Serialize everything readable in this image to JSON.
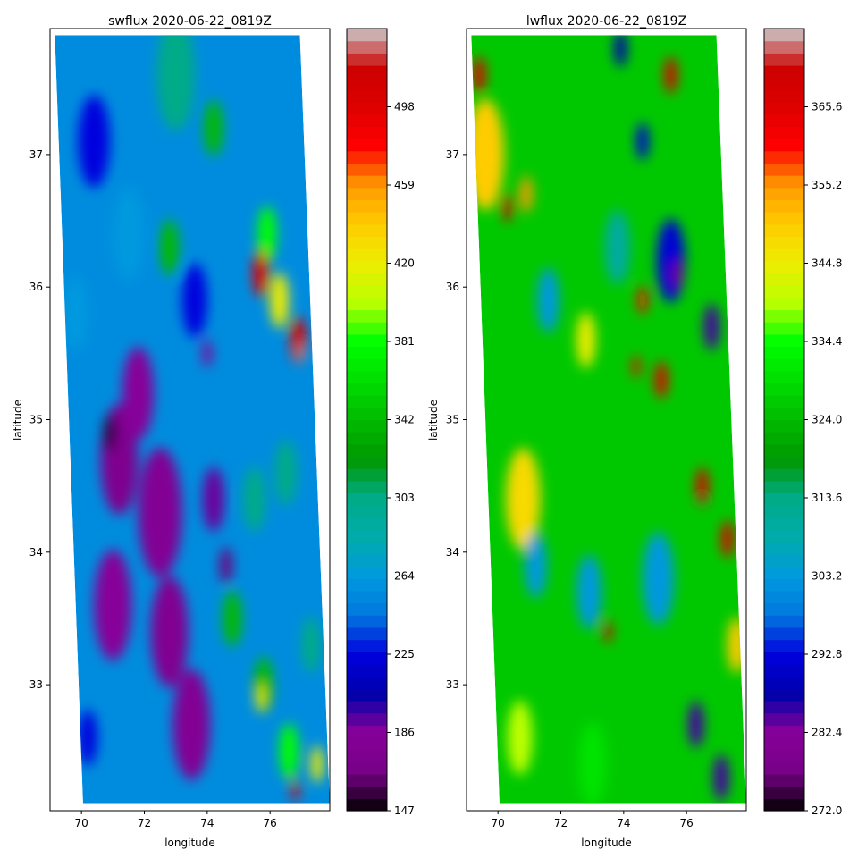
{
  "chart_data": [
    {
      "type": "heatmap",
      "title": "swflux 2020-06-22_0819Z",
      "xlabel": "longitude",
      "ylabel": "latitude",
      "x_ticks": [
        70,
        72,
        74,
        76
      ],
      "y_ticks": [
        33,
        34,
        35,
        36,
        37
      ],
      "xlim": [
        69.0,
        77.9
      ],
      "ylim": [
        32.05,
        37.95
      ],
      "colorbar": {
        "colormap": "nipy_spectral",
        "min": 147,
        "max": 537,
        "ticks": [
          147,
          186,
          225,
          264,
          303,
          342,
          381,
          420,
          459,
          498
        ]
      },
      "swath_corners": [
        [
          69.15,
          37.9
        ],
        [
          76.95,
          37.9
        ],
        [
          77.9,
          32.1
        ],
        [
          70.05,
          32.1
        ]
      ],
      "features": [
        {
          "lon": 70.4,
          "lat": 37.1,
          "value": 225,
          "radius_deg": 0.5
        },
        {
          "lon": 71.5,
          "lat": 36.4,
          "value": 264,
          "radius_deg": 0.5
        },
        {
          "lon": 73.0,
          "lat": 37.6,
          "value": 303,
          "radius_deg": 0.6
        },
        {
          "lon": 74.2,
          "lat": 37.2,
          "value": 342,
          "radius_deg": 0.3
        },
        {
          "lon": 72.8,
          "lat": 36.3,
          "value": 342,
          "radius_deg": 0.3
        },
        {
          "lon": 75.9,
          "lat": 36.4,
          "value": 381,
          "radius_deg": 0.3
        },
        {
          "lon": 75.7,
          "lat": 36.1,
          "value": 498,
          "radius_deg": 0.25
        },
        {
          "lon": 76.3,
          "lat": 35.9,
          "value": 420,
          "radius_deg": 0.3
        },
        {
          "lon": 76.9,
          "lat": 35.6,
          "value": 498,
          "radius_deg": 0.25
        },
        {
          "lon": 77.0,
          "lat": 35.5,
          "value": 530,
          "radius_deg": 0.1
        },
        {
          "lon": 73.6,
          "lat": 35.9,
          "value": 225,
          "radius_deg": 0.4
        },
        {
          "lon": 74.0,
          "lat": 35.5,
          "value": 186,
          "radius_deg": 0.15
        },
        {
          "lon": 71.8,
          "lat": 35.2,
          "value": 186,
          "radius_deg": 0.5
        },
        {
          "lon": 71.2,
          "lat": 34.7,
          "value": 175,
          "radius_deg": 0.6
        },
        {
          "lon": 70.9,
          "lat": 34.9,
          "value": 155,
          "radius_deg": 0.2
        },
        {
          "lon": 72.5,
          "lat": 34.3,
          "value": 180,
          "radius_deg": 0.7
        },
        {
          "lon": 71.0,
          "lat": 33.6,
          "value": 186,
          "radius_deg": 0.6
        },
        {
          "lon": 72.8,
          "lat": 33.4,
          "value": 178,
          "radius_deg": 0.6
        },
        {
          "lon": 73.5,
          "lat": 32.7,
          "value": 180,
          "radius_deg": 0.6
        },
        {
          "lon": 74.2,
          "lat": 34.4,
          "value": 190,
          "radius_deg": 0.35
        },
        {
          "lon": 74.6,
          "lat": 33.9,
          "value": 165,
          "radius_deg": 0.2
        },
        {
          "lon": 74.8,
          "lat": 33.5,
          "value": 342,
          "radius_deg": 0.3
        },
        {
          "lon": 75.5,
          "lat": 34.4,
          "value": 303,
          "radius_deg": 0.35
        },
        {
          "lon": 76.5,
          "lat": 34.6,
          "value": 303,
          "radius_deg": 0.35
        },
        {
          "lon": 75.8,
          "lat": 33.0,
          "value": 342,
          "radius_deg": 0.3
        },
        {
          "lon": 75.7,
          "lat": 32.9,
          "value": 420,
          "radius_deg": 0.15
        },
        {
          "lon": 76.6,
          "lat": 32.5,
          "value": 381,
          "radius_deg": 0.3
        },
        {
          "lon": 76.8,
          "lat": 32.2,
          "value": 498,
          "radius_deg": 0.12
        },
        {
          "lon": 77.5,
          "lat": 32.4,
          "value": 420,
          "radius_deg": 0.2
        },
        {
          "lon": 77.3,
          "lat": 33.3,
          "value": 303,
          "radius_deg": 0.3
        },
        {
          "lon": 70.2,
          "lat": 32.6,
          "value": 225,
          "radius_deg": 0.3
        },
        {
          "lon": 69.8,
          "lat": 35.8,
          "value": 264,
          "radius_deg": 0.4
        }
      ]
    },
    {
      "type": "heatmap",
      "title": "lwflux 2020-06-22_0819Z",
      "xlabel": "longitude",
      "ylabel": "latitude",
      "x_ticks": [
        70,
        72,
        74,
        76
      ],
      "y_ticks": [
        33,
        34,
        35,
        36,
        37
      ],
      "xlim": [
        69.0,
        77.9
      ],
      "ylim": [
        32.05,
        37.95
      ],
      "colorbar": {
        "colormap": "nipy_spectral",
        "min": 272.0,
        "max": 376.0,
        "ticks": [
          272.0,
          282.4,
          292.8,
          303.2,
          313.6,
          324.0,
          334.4,
          344.8,
          355.2,
          365.6
        ]
      },
      "swath_corners": [
        [
          69.15,
          37.9
        ],
        [
          76.95,
          37.9
        ],
        [
          77.9,
          32.1
        ],
        [
          70.05,
          32.1
        ]
      ],
      "features": [
        {
          "lon": 69.6,
          "lat": 37.0,
          "value": 350,
          "radius_deg": 0.6
        },
        {
          "lon": 69.4,
          "lat": 37.6,
          "value": 365,
          "radius_deg": 0.2
        },
        {
          "lon": 70.3,
          "lat": 36.6,
          "value": 366,
          "radius_deg": 0.15
        },
        {
          "lon": 70.9,
          "lat": 36.7,
          "value": 355,
          "radius_deg": 0.2
        },
        {
          "lon": 70.8,
          "lat": 34.4,
          "value": 348,
          "radius_deg": 0.55
        },
        {
          "lon": 72.8,
          "lat": 35.6,
          "value": 345,
          "radius_deg": 0.3
        },
        {
          "lon": 74.6,
          "lat": 35.9,
          "value": 360,
          "radius_deg": 0.15
        },
        {
          "lon": 74.4,
          "lat": 35.4,
          "value": 362,
          "radius_deg": 0.12
        },
        {
          "lon": 75.2,
          "lat": 35.3,
          "value": 365,
          "radius_deg": 0.2
        },
        {
          "lon": 75.5,
          "lat": 37.6,
          "value": 366,
          "radius_deg": 0.2
        },
        {
          "lon": 76.5,
          "lat": 34.5,
          "value": 366,
          "radius_deg": 0.2
        },
        {
          "lon": 77.3,
          "lat": 34.1,
          "value": 366,
          "radius_deg": 0.2
        },
        {
          "lon": 76.5,
          "lat": 34.4,
          "value": 372,
          "radius_deg": 0.08
        },
        {
          "lon": 73.5,
          "lat": 33.4,
          "value": 366,
          "radius_deg": 0.12
        },
        {
          "lon": 75.7,
          "lat": 36.1,
          "value": 278,
          "radius_deg": 0.15
        },
        {
          "lon": 75.5,
          "lat": 36.2,
          "value": 292,
          "radius_deg": 0.45
        },
        {
          "lon": 76.8,
          "lat": 35.7,
          "value": 285,
          "radius_deg": 0.25
        },
        {
          "lon": 74.6,
          "lat": 37.1,
          "value": 292,
          "radius_deg": 0.2
        },
        {
          "lon": 73.9,
          "lat": 37.8,
          "value": 288,
          "radius_deg": 0.2
        },
        {
          "lon": 76.3,
          "lat": 32.7,
          "value": 285,
          "radius_deg": 0.25
        },
        {
          "lon": 77.1,
          "lat": 32.3,
          "value": 285,
          "radius_deg": 0.25
        },
        {
          "lon": 75.1,
          "lat": 33.8,
          "value": 303,
          "radius_deg": 0.5
        },
        {
          "lon": 72.9,
          "lat": 33.7,
          "value": 303,
          "radius_deg": 0.4
        },
        {
          "lon": 71.2,
          "lat": 33.9,
          "value": 303,
          "radius_deg": 0.35
        },
        {
          "lon": 71.6,
          "lat": 35.9,
          "value": 303,
          "radius_deg": 0.35
        },
        {
          "lon": 73.8,
          "lat": 36.3,
          "value": 310,
          "radius_deg": 0.4
        },
        {
          "lon": 77.6,
          "lat": 33.3,
          "value": 350,
          "radius_deg": 0.3
        },
        {
          "lon": 70.7,
          "lat": 32.6,
          "value": 340,
          "radius_deg": 0.4
        },
        {
          "lon": 73.0,
          "lat": 32.4,
          "value": 330,
          "radius_deg": 0.45
        }
      ]
    }
  ]
}
